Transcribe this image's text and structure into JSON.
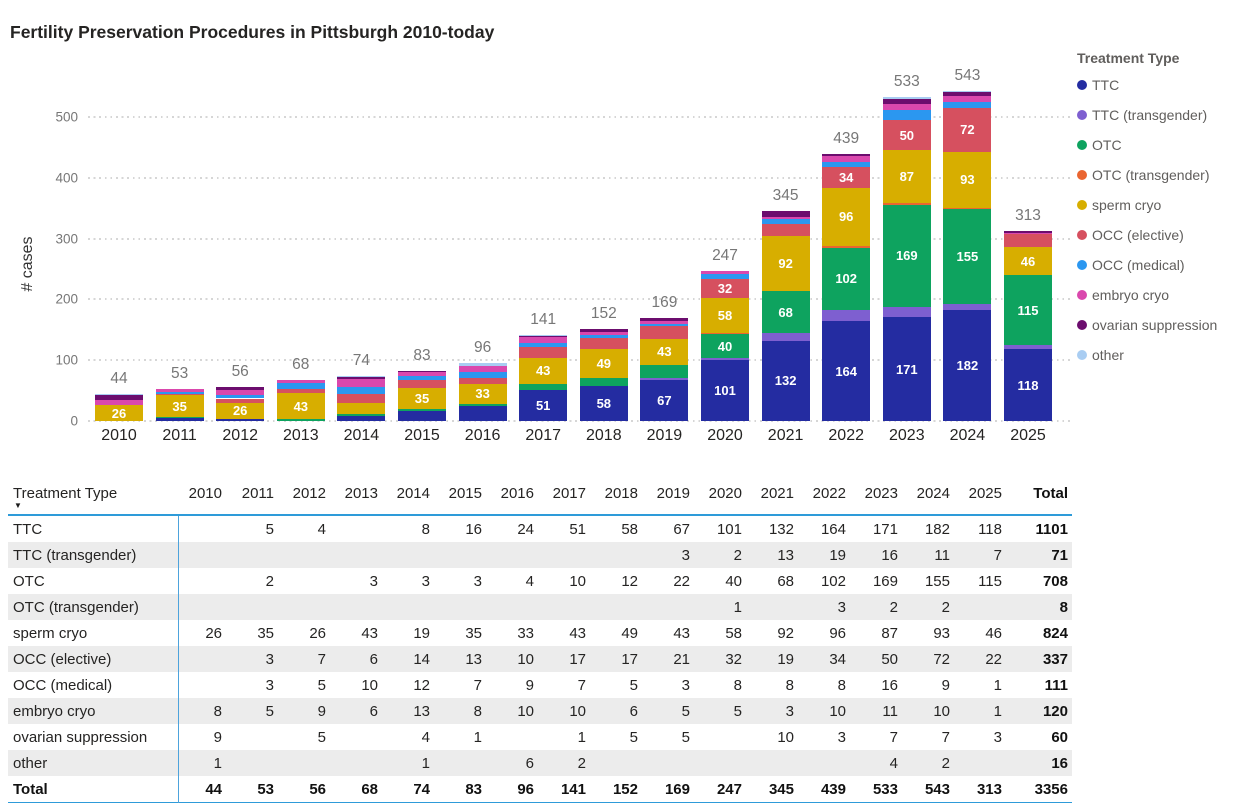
{
  "title": "Fertility Preservation Procedures in Pittsburgh 2010-today",
  "chart_data": {
    "type": "bar",
    "stacked": true,
    "title": "Fertility Preservation Procedures in Pittsburgh 2010-today",
    "xlabel": "",
    "ylabel": "# cases",
    "ylim": [
      0,
      500
    ],
    "yticks": [
      0,
      100,
      200,
      300,
      400,
      500
    ],
    "grid": "horizontal-dotted",
    "legend_position": "right",
    "legend_title": "Treatment Type",
    "segment_label_min_value": 26,
    "categories": [
      "2010",
      "2011",
      "2012",
      "2013",
      "2014",
      "2015",
      "2016",
      "2017",
      "2018",
      "2019",
      "2020",
      "2021",
      "2022",
      "2023",
      "2024",
      "2025"
    ],
    "totals": [
      44,
      53,
      56,
      68,
      74,
      83,
      96,
      141,
      152,
      169,
      247,
      345,
      439,
      533,
      543,
      313
    ],
    "series": [
      {
        "name": "TTC",
        "color": "#242CA1",
        "values": [
          null,
          5,
          4,
          null,
          8,
          16,
          24,
          51,
          58,
          67,
          101,
          132,
          164,
          171,
          182,
          118
        ]
      },
      {
        "name": "TTC (transgender)",
        "color": "#7E5FD0",
        "values": [
          null,
          null,
          null,
          null,
          null,
          null,
          null,
          null,
          null,
          3,
          2,
          13,
          19,
          16,
          11,
          7
        ]
      },
      {
        "name": "OTC",
        "color": "#0EA35F",
        "values": [
          null,
          2,
          null,
          3,
          3,
          3,
          4,
          10,
          12,
          22,
          40,
          68,
          102,
          169,
          155,
          115
        ]
      },
      {
        "name": "OTC (transgender)",
        "color": "#EA6530",
        "values": [
          null,
          null,
          null,
          null,
          null,
          null,
          null,
          null,
          null,
          null,
          1,
          null,
          3,
          2,
          2,
          null
        ]
      },
      {
        "name": "sperm cryo",
        "color": "#D7AE00",
        "values": [
          26,
          35,
          26,
          43,
          19,
          35,
          33,
          43,
          49,
          43,
          58,
          92,
          96,
          87,
          93,
          46
        ]
      },
      {
        "name": "OCC (elective)",
        "color": "#D6505F",
        "values": [
          null,
          3,
          7,
          6,
          14,
          13,
          10,
          17,
          17,
          21,
          32,
          19,
          34,
          50,
          72,
          22
        ]
      },
      {
        "name": "OCC (medical)",
        "color": "#2B97F0",
        "values": [
          null,
          3,
          5,
          10,
          12,
          7,
          9,
          7,
          5,
          3,
          8,
          8,
          8,
          16,
          9,
          1
        ]
      },
      {
        "name": "embryo cryo",
        "color": "#DA48AD",
        "values": [
          8,
          5,
          9,
          6,
          13,
          8,
          10,
          10,
          6,
          5,
          5,
          3,
          10,
          11,
          10,
          1
        ]
      },
      {
        "name": "ovarian suppression",
        "color": "#6C0D6E",
        "values": [
          9,
          null,
          5,
          null,
          4,
          1,
          null,
          1,
          5,
          5,
          null,
          10,
          3,
          7,
          7,
          3
        ]
      },
      {
        "name": "other",
        "color": "#A9CDF2",
        "values": [
          1,
          null,
          null,
          null,
          1,
          null,
          6,
          2,
          null,
          null,
          null,
          null,
          null,
          4,
          2,
          null
        ]
      }
    ]
  },
  "table": {
    "header_col": "Treatment Type",
    "sort_icon": "▼",
    "year_columns": [
      "2010",
      "2011",
      "2012",
      "2013",
      "2014",
      "2015",
      "2016",
      "2017",
      "2018",
      "2019",
      "2020",
      "2021",
      "2022",
      "2023",
      "2024",
      "2025"
    ],
    "total_column": "Total",
    "rows": [
      {
        "label": "TTC",
        "values": [
          null,
          5,
          4,
          null,
          8,
          16,
          24,
          51,
          58,
          67,
          101,
          132,
          164,
          171,
          182,
          118
        ],
        "total": 1101
      },
      {
        "label": "TTC (transgender)",
        "values": [
          null,
          null,
          null,
          null,
          null,
          null,
          null,
          null,
          null,
          3,
          2,
          13,
          19,
          16,
          11,
          7
        ],
        "total": 71
      },
      {
        "label": "OTC",
        "values": [
          null,
          2,
          null,
          3,
          3,
          3,
          4,
          10,
          12,
          22,
          40,
          68,
          102,
          169,
          155,
          115
        ],
        "total": 708
      },
      {
        "label": "OTC (transgender)",
        "values": [
          null,
          null,
          null,
          null,
          null,
          null,
          null,
          null,
          null,
          null,
          1,
          null,
          3,
          2,
          2,
          null
        ],
        "total": 8
      },
      {
        "label": "sperm cryo",
        "values": [
          26,
          35,
          26,
          43,
          19,
          35,
          33,
          43,
          49,
          43,
          58,
          92,
          96,
          87,
          93,
          46
        ],
        "total": 824
      },
      {
        "label": "OCC (elective)",
        "values": [
          null,
          3,
          7,
          6,
          14,
          13,
          10,
          17,
          17,
          21,
          32,
          19,
          34,
          50,
          72,
          22
        ],
        "total": 337
      },
      {
        "label": "OCC (medical)",
        "values": [
          null,
          3,
          5,
          10,
          12,
          7,
          9,
          7,
          5,
          3,
          8,
          8,
          8,
          16,
          9,
          1
        ],
        "total": 111
      },
      {
        "label": "embryo cryo",
        "values": [
          8,
          5,
          9,
          6,
          13,
          8,
          10,
          10,
          6,
          5,
          5,
          3,
          10,
          11,
          10,
          1
        ],
        "total": 120
      },
      {
        "label": "ovarian suppression",
        "values": [
          9,
          null,
          5,
          null,
          4,
          1,
          null,
          1,
          5,
          5,
          null,
          10,
          3,
          7,
          7,
          3
        ],
        "total": 60
      },
      {
        "label": "other",
        "values": [
          1,
          null,
          null,
          null,
          1,
          null,
          6,
          2,
          null,
          null,
          null,
          null,
          null,
          4,
          2,
          null
        ],
        "total": 16
      }
    ],
    "total_row": {
      "label": "Total",
      "values": [
        44,
        53,
        56,
        68,
        74,
        83,
        96,
        141,
        152,
        169,
        247,
        345,
        439,
        533,
        543,
        313
      ],
      "total": 3356
    }
  },
  "colors": {
    "gridline": "#d6d6d6",
    "axis_tick_text": "#777777",
    "bar_total_label": "#777777",
    "table_accent_line": "#2E9BD9",
    "table_alt_row": "#ececec",
    "text": "#252423"
  }
}
